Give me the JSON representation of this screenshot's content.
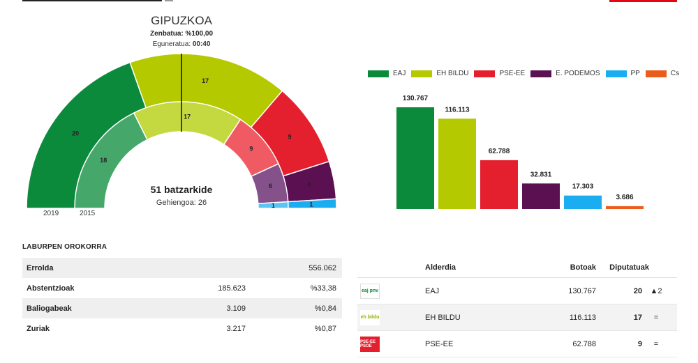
{
  "header": {
    "region": "GIPUZKOA",
    "counted_label": "Zenbatua:",
    "counted_value": "%100,00",
    "updated_label": "Eguneratua:",
    "updated_value": "00:40"
  },
  "colors": {
    "EAJ": "#0c8a3c",
    "EH BILDU": "#b5c900",
    "PSE-EE": "#e5202e",
    "E. PODEMOS": "#5b1052",
    "PP": "#1aaef0",
    "Cs": "#eb5d1a"
  },
  "chart_data": [
    {
      "type": "pie",
      "subtype": "hemicycle",
      "total_label": "51 batzarkide",
      "majority_label": "Gehiengoa: 26",
      "rings": [
        {
          "name": "2019",
          "slices": [
            {
              "party": "EAJ",
              "seats": 20,
              "color": "#0c8a3c"
            },
            {
              "party": "EH BILDU",
              "seats": 17,
              "color": "#b5c900"
            },
            {
              "party": "PSE-EE",
              "seats": 9,
              "color": "#e5202e"
            },
            {
              "party": "E. PODEMOS",
              "seats": 4,
              "color": "#5b1052"
            },
            {
              "party": "PP",
              "seats": 1,
              "color": "#1aaef0"
            }
          ]
        },
        {
          "name": "2015",
          "slices": [
            {
              "party": "EAJ",
              "seats": 18,
              "color": "#45a86a"
            },
            {
              "party": "EH BILDU",
              "seats": 17,
              "color": "#c4d940"
            },
            {
              "party": "PSE-EE",
              "seats": 9,
              "color": "#f05a62"
            },
            {
              "party": "E. PODEMOS",
              "seats": 6,
              "color": "#84518a"
            },
            {
              "party": "PP",
              "seats": 1,
              "color": "#5cc4f3"
            }
          ]
        }
      ]
    },
    {
      "type": "bar",
      "categories": [
        "EAJ",
        "EH BILDU",
        "PSE-EE",
        "E. PODEMOS",
        "PP",
        "Cs"
      ],
      "values": [
        130767,
        116113,
        62788,
        32831,
        17303,
        3686
      ],
      "value_labels": [
        "130.767",
        "116.113",
        "62.788",
        "32.831",
        "17.303",
        "3.686"
      ],
      "colors": [
        "#0c8a3c",
        "#b5c900",
        "#e5202e",
        "#5b1052",
        "#1aaef0",
        "#eb5d1a"
      ],
      "legend": "top",
      "grid": false
    }
  ],
  "summary": {
    "title": "LABURPEN OROKORRA",
    "rows": [
      {
        "label": "Errolda",
        "v1": "",
        "v2": "556.062"
      },
      {
        "label": "Abstentzioak",
        "v1": "185.623",
        "v2": "%33,38"
      },
      {
        "label": "Baliogabeak",
        "v1": "3.109",
        "v2": "%0,84"
      },
      {
        "label": "Zuriak",
        "v1": "3.217",
        "v2": "%0,87"
      }
    ]
  },
  "results": {
    "headers": {
      "party": "Alderdia",
      "votes": "Botoak",
      "seats": "Diputatuak"
    },
    "rows": [
      {
        "logo_text": "eaj pnv",
        "party": "EAJ",
        "votes": "130.767",
        "seats": "20",
        "delta": "▲2"
      },
      {
        "logo_text": "eh bildu",
        "party": "EH BILDU",
        "votes": "116.113",
        "seats": "17",
        "delta": "="
      },
      {
        "logo_text": "PSE-EE PSOE",
        "party": "PSE-EE",
        "votes": "62.788",
        "seats": "9",
        "delta": "="
      }
    ]
  }
}
